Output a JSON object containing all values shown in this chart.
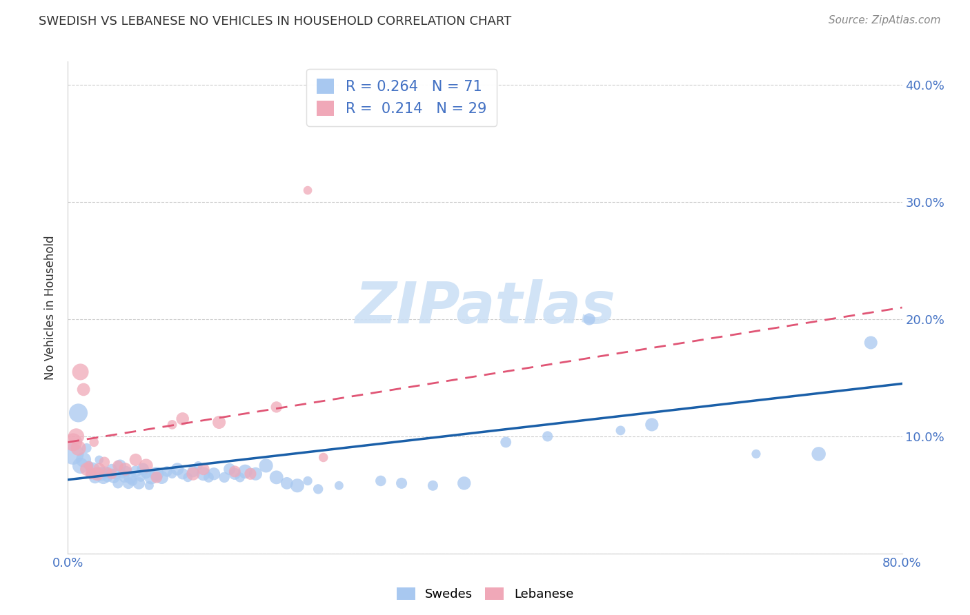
{
  "title": "SWEDISH VS LEBANESE NO VEHICLES IN HOUSEHOLD CORRELATION CHART",
  "source": "Source: ZipAtlas.com",
  "ylabel": "No Vehicles in Household",
  "xlim": [
    0.0,
    0.8
  ],
  "ylim": [
    0.0,
    0.42
  ],
  "xticks": [
    0.0,
    0.1,
    0.2,
    0.3,
    0.4,
    0.5,
    0.6,
    0.7,
    0.8
  ],
  "yticks": [
    0.0,
    0.1,
    0.2,
    0.3,
    0.4
  ],
  "ytick_labels": [
    "",
    "10.0%",
    "20.0%",
    "30.0%",
    "40.0%"
  ],
  "grid_color": "#cccccc",
  "background_color": "#ffffff",
  "swedes_color": "#a8c8f0",
  "lebanese_color": "#f0a8b8",
  "swedes_line_color": "#1a5fa8",
  "lebanese_line_color": "#e05575",
  "swedes_R": 0.264,
  "swedes_N": 71,
  "lebanese_R": 0.214,
  "lebanese_N": 29,
  "swedes_line_x0": 0.0,
  "swedes_line_y0": 0.063,
  "swedes_line_x1": 0.8,
  "swedes_line_y1": 0.145,
  "lebanese_line_x0": 0.0,
  "lebanese_line_y0": 0.095,
  "lebanese_line_x1": 0.8,
  "lebanese_line_y1": 0.21,
  "swedes_x": [
    0.005,
    0.01,
    0.012,
    0.015,
    0.018,
    0.02,
    0.022,
    0.024,
    0.026,
    0.028,
    0.03,
    0.032,
    0.034,
    0.036,
    0.038,
    0.04,
    0.042,
    0.044,
    0.046,
    0.048,
    0.05,
    0.052,
    0.054,
    0.056,
    0.058,
    0.06,
    0.062,
    0.065,
    0.068,
    0.07,
    0.072,
    0.075,
    0.078,
    0.08,
    0.085,
    0.09,
    0.095,
    0.1,
    0.105,
    0.11,
    0.115,
    0.12,
    0.125,
    0.13,
    0.135,
    0.14,
    0.15,
    0.155,
    0.16,
    0.165,
    0.17,
    0.18,
    0.19,
    0.2,
    0.21,
    0.22,
    0.23,
    0.24,
    0.26,
    0.3,
    0.32,
    0.35,
    0.38,
    0.42,
    0.46,
    0.5,
    0.53,
    0.56,
    0.66,
    0.72,
    0.77
  ],
  "swedes_y": [
    0.085,
    0.12,
    0.075,
    0.08,
    0.09,
    0.075,
    0.068,
    0.072,
    0.065,
    0.068,
    0.08,
    0.068,
    0.065,
    0.07,
    0.065,
    0.068,
    0.072,
    0.065,
    0.068,
    0.06,
    0.075,
    0.068,
    0.065,
    0.07,
    0.06,
    0.065,
    0.062,
    0.07,
    0.06,
    0.065,
    0.072,
    0.068,
    0.058,
    0.065,
    0.068,
    0.065,
    0.07,
    0.068,
    0.072,
    0.068,
    0.065,
    0.07,
    0.075,
    0.068,
    0.065,
    0.068,
    0.065,
    0.072,
    0.068,
    0.065,
    0.07,
    0.068,
    0.075,
    0.065,
    0.06,
    0.058,
    0.062,
    0.055,
    0.058,
    0.062,
    0.06,
    0.058,
    0.06,
    0.095,
    0.1,
    0.2,
    0.105,
    0.11,
    0.085,
    0.085,
    0.18
  ],
  "lebanese_x": [
    0.005,
    0.008,
    0.01,
    0.012,
    0.015,
    0.018,
    0.02,
    0.022,
    0.025,
    0.028,
    0.03,
    0.035,
    0.038,
    0.042,
    0.048,
    0.055,
    0.065,
    0.075,
    0.085,
    0.1,
    0.11,
    0.12,
    0.13,
    0.145,
    0.16,
    0.175,
    0.2,
    0.23,
    0.245
  ],
  "lebanese_y": [
    0.095,
    0.1,
    0.09,
    0.155,
    0.14,
    0.072,
    0.075,
    0.068,
    0.095,
    0.068,
    0.072,
    0.078,
    0.07,
    0.068,
    0.075,
    0.072,
    0.08,
    0.075,
    0.065,
    0.11,
    0.115,
    0.068,
    0.072,
    0.112,
    0.07,
    0.068,
    0.125,
    0.31,
    0.082
  ]
}
